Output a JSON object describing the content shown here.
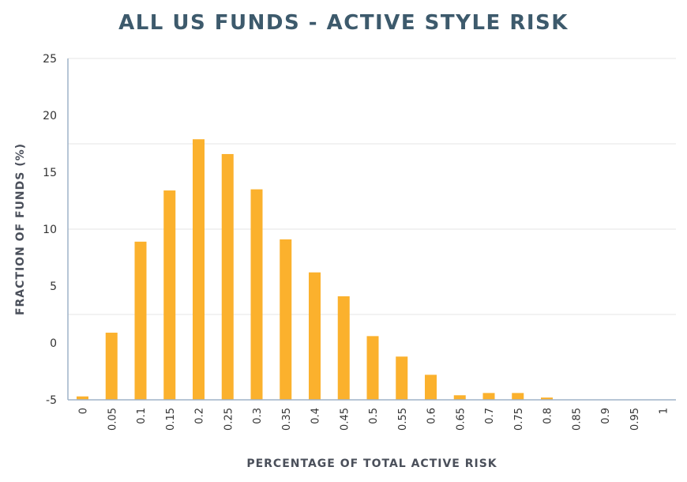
{
  "chart_data": {
    "type": "bar",
    "title": "ALL US FUNDS - ACTIVE STYLE RISK",
    "xlabel": "PERCENTAGE OF TOTAL ACTIVE RISK",
    "ylabel": "FRACTION OF FUNDS (%)",
    "categories": [
      "0",
      "0.05",
      "0.1",
      "0.15",
      "0.2",
      "0.25",
      "0.3",
      "0.35",
      "0.4",
      "0.45",
      "0.5",
      "0.55",
      "0.6",
      "0.65",
      "0.7",
      "0.75",
      "0.8",
      "0.85",
      "0.9",
      "0.95",
      "1"
    ],
    "values": [
      -4.7,
      0.9,
      8.9,
      13.4,
      17.9,
      16.6,
      13.5,
      9.1,
      6.2,
      4.1,
      0.6,
      -1.2,
      -2.8,
      -4.6,
      -4.4,
      -4.4,
      -4.8,
      -5.0,
      -5.0,
      -5.0,
      -5.0
    ],
    "yticks": [
      "25",
      "20",
      "15",
      "10",
      "5",
      "0",
      "-5"
    ],
    "ylim": [
      -5,
      25
    ],
    "bar_color": "#FBB12D",
    "grid": true,
    "gridlines_at": [
      25,
      17.5,
      10,
      2.5
    ]
  }
}
